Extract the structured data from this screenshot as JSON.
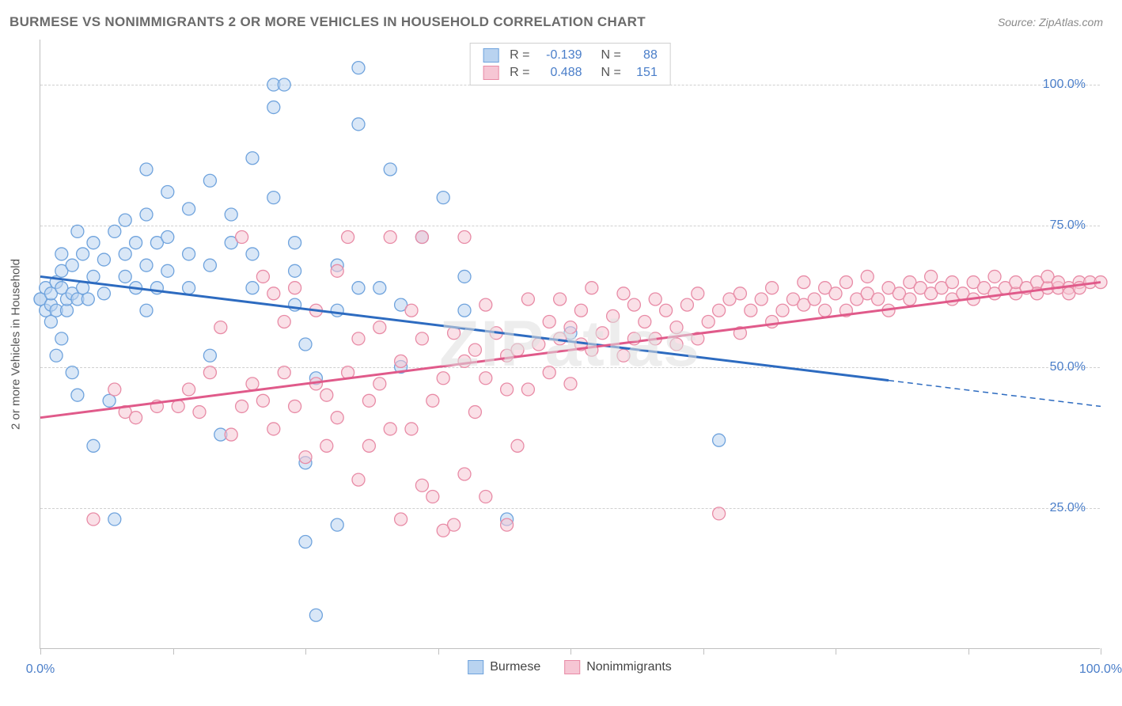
{
  "header": {
    "title": "BURMESE VS NONIMMIGRANTS 2 OR MORE VEHICLES IN HOUSEHOLD CORRELATION CHART",
    "source": "Source: ZipAtlas.com"
  },
  "watermark": "ZIPatlas",
  "chart": {
    "type": "scatter",
    "y_axis_title": "2 or more Vehicles in Household",
    "background_color": "#ffffff",
    "grid_color": "#d0d0d0",
    "axis_color": "#c0c0c0",
    "tick_label_color": "#4a7ec9",
    "tick_label_fontsize": 16,
    "xlim": [
      0,
      100
    ],
    "ylim": [
      0,
      108
    ],
    "x_ticks": [
      0,
      12.5,
      25,
      37.5,
      50,
      62.5,
      75,
      87.5,
      100
    ],
    "x_tick_labels": {
      "0": "0.0%",
      "100": "100.0%"
    },
    "y_grid": [
      25,
      50,
      75,
      100
    ],
    "y_tick_labels": {
      "25": "25.0%",
      "50": "50.0%",
      "75": "75.0%",
      "100": "100.0%"
    },
    "marker_radius": 8,
    "marker_opacity": 0.55,
    "marker_stroke_width": 1.3,
    "series": [
      {
        "name": "Burmese",
        "fill": "#b9d3f0",
        "stroke": "#6fa3dd",
        "line_color": "#2d6bc0",
        "R": "-0.139",
        "N": "88",
        "trend": {
          "x1": 0,
          "y1": 66,
          "x2": 100,
          "y2": 43,
          "solid_until_x": 80
        },
        "points": [
          [
            0,
            62
          ],
          [
            0,
            62
          ],
          [
            0.5,
            60
          ],
          [
            0.5,
            64
          ],
          [
            1,
            58
          ],
          [
            1,
            61
          ],
          [
            1,
            63
          ],
          [
            1.5,
            52
          ],
          [
            1.5,
            60
          ],
          [
            1.5,
            65
          ],
          [
            2,
            55
          ],
          [
            2,
            64
          ],
          [
            2,
            67
          ],
          [
            2,
            70
          ],
          [
            2.5,
            60
          ],
          [
            2.5,
            62
          ],
          [
            3,
            49
          ],
          [
            3,
            63
          ],
          [
            3,
            68
          ],
          [
            3.5,
            45
          ],
          [
            3.5,
            62
          ],
          [
            3.5,
            74
          ],
          [
            4,
            64
          ],
          [
            4,
            70
          ],
          [
            4.5,
            62
          ],
          [
            5,
            36
          ],
          [
            5,
            66
          ],
          [
            5,
            72
          ],
          [
            6,
            63
          ],
          [
            6,
            69
          ],
          [
            6.5,
            44
          ],
          [
            7,
            23
          ],
          [
            7,
            74
          ],
          [
            8,
            66
          ],
          [
            8,
            70
          ],
          [
            8,
            76
          ],
          [
            9,
            64
          ],
          [
            9,
            72
          ],
          [
            10,
            60
          ],
          [
            10,
            68
          ],
          [
            10,
            77
          ],
          [
            10,
            85
          ],
          [
            11,
            64
          ],
          [
            11,
            72
          ],
          [
            12,
            67
          ],
          [
            12,
            73
          ],
          [
            12,
            81
          ],
          [
            14,
            64
          ],
          [
            14,
            70
          ],
          [
            14,
            78
          ],
          [
            16,
            52
          ],
          [
            16,
            68
          ],
          [
            16,
            83
          ],
          [
            17,
            38
          ],
          [
            18,
            72
          ],
          [
            18,
            77
          ],
          [
            20,
            64
          ],
          [
            20,
            70
          ],
          [
            20,
            87
          ],
          [
            22,
            80
          ],
          [
            22,
            96
          ],
          [
            22,
            100
          ],
          [
            23,
            100
          ],
          [
            24,
            61
          ],
          [
            24,
            67
          ],
          [
            24,
            72
          ],
          [
            25,
            33
          ],
          [
            25,
            19
          ],
          [
            25,
            54
          ],
          [
            26,
            6
          ],
          [
            26,
            48
          ],
          [
            28,
            22
          ],
          [
            28,
            60
          ],
          [
            28,
            68
          ],
          [
            30,
            93
          ],
          [
            30,
            64
          ],
          [
            30,
            103
          ],
          [
            32,
            64
          ],
          [
            33,
            85
          ],
          [
            34,
            50
          ],
          [
            34,
            61
          ],
          [
            36,
            73
          ],
          [
            38,
            80
          ],
          [
            40,
            60
          ],
          [
            40,
            66
          ],
          [
            44,
            23
          ],
          [
            50,
            56
          ],
          [
            64,
            37
          ]
        ]
      },
      {
        "name": "Nonimmigrants",
        "fill": "#f6c6d4",
        "stroke": "#e88ba6",
        "line_color": "#e05a8a",
        "R": "0.488",
        "N": "151",
        "trend": {
          "x1": 0,
          "y1": 41,
          "x2": 100,
          "y2": 65,
          "solid_until_x": 100
        },
        "points": [
          [
            5,
            23
          ],
          [
            7,
            46
          ],
          [
            8,
            42
          ],
          [
            9,
            41
          ],
          [
            11,
            43
          ],
          [
            13,
            43
          ],
          [
            14,
            46
          ],
          [
            15,
            42
          ],
          [
            16,
            49
          ],
          [
            17,
            57
          ],
          [
            18,
            38
          ],
          [
            19,
            43
          ],
          [
            19,
            73
          ],
          [
            20,
            47
          ],
          [
            21,
            44
          ],
          [
            21,
            66
          ],
          [
            22,
            39
          ],
          [
            22,
            63
          ],
          [
            23,
            49
          ],
          [
            23,
            58
          ],
          [
            24,
            43
          ],
          [
            24,
            64
          ],
          [
            25,
            34
          ],
          [
            26,
            47
          ],
          [
            26,
            60
          ],
          [
            27,
            45
          ],
          [
            27,
            36
          ],
          [
            28,
            41
          ],
          [
            28,
            67
          ],
          [
            29,
            49
          ],
          [
            29,
            73
          ],
          [
            30,
            30
          ],
          [
            30,
            55
          ],
          [
            31,
            36
          ],
          [
            31,
            44
          ],
          [
            32,
            47
          ],
          [
            32,
            57
          ],
          [
            33,
            39
          ],
          [
            33,
            73
          ],
          [
            34,
            23
          ],
          [
            34,
            51
          ],
          [
            35,
            39
          ],
          [
            35,
            60
          ],
          [
            36,
            29
          ],
          [
            36,
            55
          ],
          [
            36,
            73
          ],
          [
            37,
            27
          ],
          [
            37,
            44
          ],
          [
            38,
            21
          ],
          [
            38,
            48
          ],
          [
            39,
            22
          ],
          [
            39,
            56
          ],
          [
            40,
            31
          ],
          [
            40,
            51
          ],
          [
            40,
            73
          ],
          [
            41,
            42
          ],
          [
            41,
            53
          ],
          [
            42,
            27
          ],
          [
            42,
            48
          ],
          [
            42,
            61
          ],
          [
            43,
            56
          ],
          [
            44,
            22
          ],
          [
            44,
            46
          ],
          [
            44,
            52
          ],
          [
            45,
            36
          ],
          [
            45,
            53
          ],
          [
            46,
            46
          ],
          [
            46,
            62
          ],
          [
            47,
            54
          ],
          [
            48,
            49
          ],
          [
            48,
            58
          ],
          [
            49,
            55
          ],
          [
            49,
            62
          ],
          [
            50,
            47
          ],
          [
            50,
            57
          ],
          [
            51,
            54
          ],
          [
            51,
            60
          ],
          [
            52,
            53
          ],
          [
            52,
            64
          ],
          [
            53,
            56
          ],
          [
            54,
            59
          ],
          [
            55,
            52
          ],
          [
            55,
            63
          ],
          [
            56,
            55
          ],
          [
            56,
            61
          ],
          [
            57,
            58
          ],
          [
            58,
            55
          ],
          [
            58,
            62
          ],
          [
            59,
            60
          ],
          [
            60,
            57
          ],
          [
            60,
            54
          ],
          [
            61,
            61
          ],
          [
            62,
            55
          ],
          [
            62,
            63
          ],
          [
            63,
            58
          ],
          [
            64,
            24
          ],
          [
            64,
            60
          ],
          [
            65,
            62
          ],
          [
            66,
            56
          ],
          [
            66,
            63
          ],
          [
            67,
            60
          ],
          [
            68,
            62
          ],
          [
            69,
            58
          ],
          [
            69,
            64
          ],
          [
            70,
            60
          ],
          [
            71,
            62
          ],
          [
            72,
            61
          ],
          [
            72,
            65
          ],
          [
            73,
            62
          ],
          [
            74,
            60
          ],
          [
            74,
            64
          ],
          [
            75,
            63
          ],
          [
            76,
            60
          ],
          [
            76,
            65
          ],
          [
            77,
            62
          ],
          [
            78,
            63
          ],
          [
            78,
            66
          ],
          [
            79,
            62
          ],
          [
            80,
            64
          ],
          [
            80,
            60
          ],
          [
            81,
            63
          ],
          [
            82,
            65
          ],
          [
            82,
            62
          ],
          [
            83,
            64
          ],
          [
            84,
            63
          ],
          [
            84,
            66
          ],
          [
            85,
            64
          ],
          [
            86,
            62
          ],
          [
            86,
            65
          ],
          [
            87,
            63
          ],
          [
            88,
            65
          ],
          [
            88,
            62
          ],
          [
            89,
            64
          ],
          [
            90,
            63
          ],
          [
            90,
            66
          ],
          [
            91,
            64
          ],
          [
            92,
            63
          ],
          [
            92,
            65
          ],
          [
            93,
            64
          ],
          [
            94,
            65
          ],
          [
            94,
            63
          ],
          [
            95,
            64
          ],
          [
            95,
            66
          ],
          [
            96,
            64
          ],
          [
            96,
            65
          ],
          [
            97,
            64
          ],
          [
            97,
            63
          ],
          [
            98,
            65
          ],
          [
            98,
            64
          ],
          [
            99,
            65
          ],
          [
            100,
            65
          ]
        ]
      }
    ],
    "legend_bottom": [
      {
        "label": "Burmese",
        "fill": "#b9d3f0",
        "stroke": "#6fa3dd"
      },
      {
        "label": "Nonimmigrants",
        "fill": "#f6c6d4",
        "stroke": "#e88ba6"
      }
    ]
  }
}
